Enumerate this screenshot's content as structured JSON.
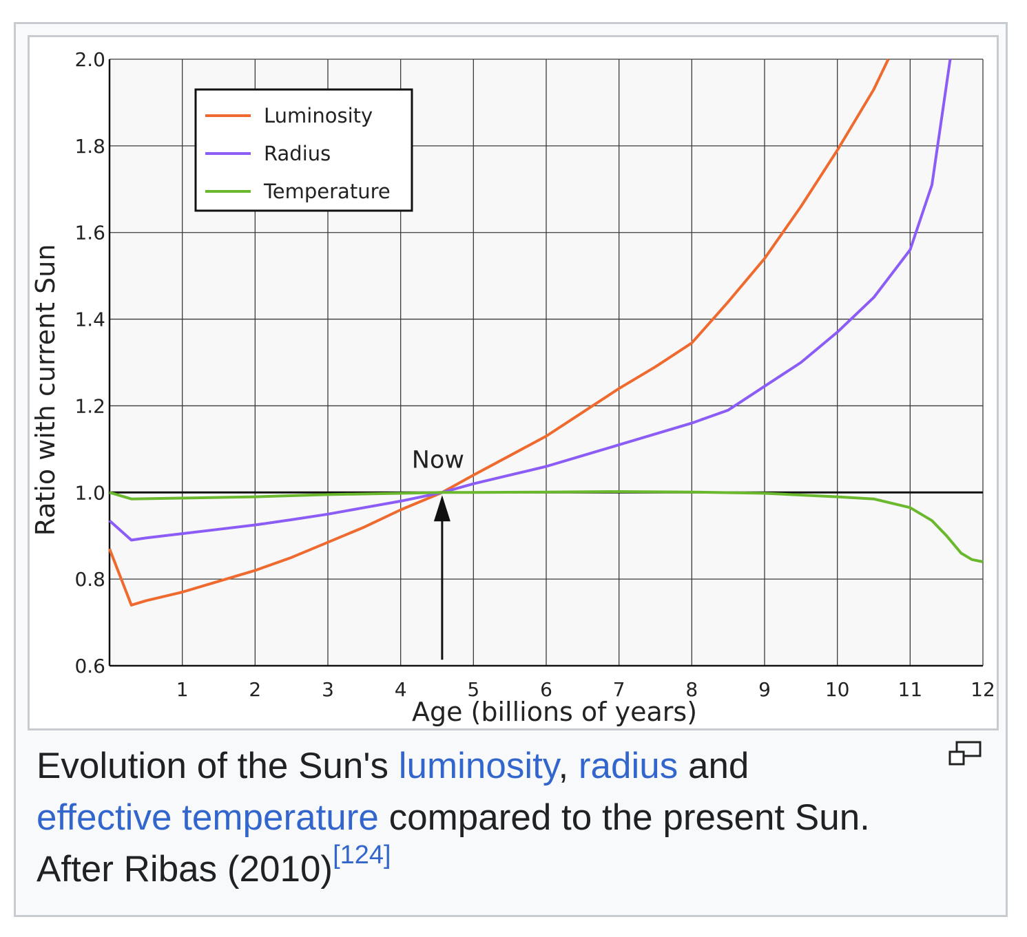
{
  "chart_data": {
    "type": "line",
    "xlabel": "Age (billions of years)",
    "ylabel": "Ratio with current Sun",
    "xlim": [
      0,
      12
    ],
    "ylim": [
      0.6,
      2.0
    ],
    "x_ticks": [
      "1",
      "2",
      "3",
      "4",
      "5",
      "6",
      "7",
      "8",
      "9",
      "10",
      "11",
      "12"
    ],
    "y_ticks": [
      "0.6",
      "0.8",
      "1.0",
      "1.2",
      "1.4",
      "1.6",
      "1.8",
      "2.0"
    ],
    "grid": true,
    "legend_position": "top-left",
    "reference_line": 1.0,
    "annotation": {
      "text": "Now",
      "x": 4.57,
      "y": 1.0
    },
    "series": [
      {
        "name": "Luminosity",
        "color": "#ef6a2e",
        "points": [
          [
            0,
            0.87
          ],
          [
            0.3,
            0.74
          ],
          [
            0.5,
            0.75
          ],
          [
            1,
            0.77
          ],
          [
            1.5,
            0.795
          ],
          [
            2,
            0.82
          ],
          [
            2.5,
            0.85
          ],
          [
            3,
            0.885
          ],
          [
            3.5,
            0.92
          ],
          [
            4,
            0.96
          ],
          [
            4.57,
            1.0
          ],
          [
            5,
            1.04
          ],
          [
            5.5,
            1.085
          ],
          [
            6,
            1.13
          ],
          [
            6.5,
            1.185
          ],
          [
            7,
            1.24
          ],
          [
            7.5,
            1.29
          ],
          [
            8,
            1.345
          ],
          [
            8.5,
            1.44
          ],
          [
            9,
            1.54
          ],
          [
            9.5,
            1.66
          ],
          [
            10,
            1.79
          ],
          [
            10.5,
            1.93
          ],
          [
            10.7,
            2.0
          ]
        ]
      },
      {
        "name": "Radius",
        "color": "#8b5cf6",
        "points": [
          [
            0,
            0.935
          ],
          [
            0.3,
            0.89
          ],
          [
            0.5,
            0.895
          ],
          [
            1,
            0.905
          ],
          [
            1.5,
            0.915
          ],
          [
            2,
            0.925
          ],
          [
            2.5,
            0.937
          ],
          [
            3,
            0.95
          ],
          [
            3.5,
            0.965
          ],
          [
            4,
            0.98
          ],
          [
            4.57,
            1.0
          ],
          [
            5,
            1.02
          ],
          [
            5.5,
            1.04
          ],
          [
            6,
            1.06
          ],
          [
            6.5,
            1.085
          ],
          [
            7,
            1.11
          ],
          [
            7.5,
            1.135
          ],
          [
            8,
            1.16
          ],
          [
            8.5,
            1.19
          ],
          [
            9,
            1.245
          ],
          [
            9.5,
            1.3
          ],
          [
            10,
            1.37
          ],
          [
            10.5,
            1.45
          ],
          [
            11,
            1.56
          ],
          [
            11.3,
            1.71
          ],
          [
            11.55,
            2.0
          ]
        ]
      },
      {
        "name": "Temperature",
        "color": "#6ab82e",
        "points": [
          [
            0,
            1.0
          ],
          [
            0.3,
            0.985
          ],
          [
            1,
            0.987
          ],
          [
            2,
            0.99
          ],
          [
            3,
            0.995
          ],
          [
            4,
            0.998
          ],
          [
            4.57,
            1.0
          ],
          [
            5,
            1.0
          ],
          [
            6,
            1.001
          ],
          [
            7,
            1.002
          ],
          [
            8,
            1.001
          ],
          [
            9,
            0.998
          ],
          [
            10,
            0.99
          ],
          [
            10.5,
            0.985
          ],
          [
            11,
            0.965
          ],
          [
            11.3,
            0.935
          ],
          [
            11.5,
            0.9
          ],
          [
            11.7,
            0.86
          ],
          [
            11.85,
            0.845
          ],
          [
            12,
            0.84
          ]
        ]
      }
    ]
  },
  "caption": {
    "part1": "Evolution of the Sun's ",
    "link_luminosity": "luminosity",
    "part2": ", ",
    "link_radius": "radius",
    "part3": " and ",
    "link_temperature": "effective temperature",
    "part4": " compared to the present Sun. After Ribas (2010)",
    "reference": "[124]"
  },
  "icons": {
    "enlarge": "magnify-icon"
  }
}
